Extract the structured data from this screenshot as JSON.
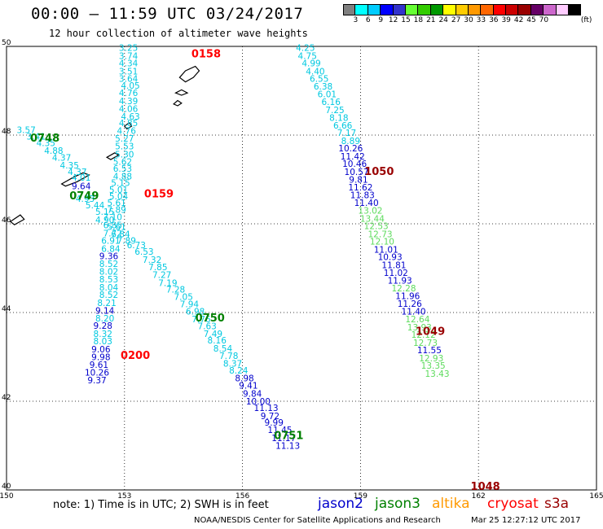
{
  "header": {
    "title": "00:00 — 11:59 UTC 03/24/2017",
    "subtitle": "12 hour collection of altimeter wave heights"
  },
  "legend": {
    "unit": "(ft)",
    "labels": [
      "3",
      "6",
      "9",
      "12",
      "15",
      "18",
      "21",
      "24",
      "27",
      "30",
      "33",
      "36",
      "39",
      "42",
      "45",
      "70"
    ],
    "colors": [
      "#808080",
      "#00ffff",
      "#00ccff",
      "#0000ff",
      "#3333cc",
      "#66ff33",
      "#33cc00",
      "#009900",
      "#ffff00",
      "#ffcc00",
      "#ff9900",
      "#ff6600",
      "#ff0000",
      "#cc0000",
      "#990000",
      "#660066",
      "#cc66cc",
      "#ffccff",
      "#000000"
    ]
  },
  "map": {
    "lat_range": [
      40,
      50
    ],
    "lon_range": [
      150,
      165
    ],
    "lat_ticks": [
      "50",
      "48",
      "46",
      "44",
      "42",
      "40"
    ],
    "lon_ticks": [
      "150",
      "153",
      "156",
      "159",
      "162",
      "165"
    ],
    "colors": {
      "cyan": "#00c8e0",
      "blue": "#0000cc",
      "green": "#5ddb5d",
      "red": "#ff0000",
      "darkred": "#990000",
      "darkgreen": "#008000"
    },
    "time_labels": [
      {
        "text": "0158",
        "color": "red",
        "lon": 154.7,
        "lat": 49.75
      },
      {
        "text": "0748",
        "color": "darkgreen",
        "lon": 150.6,
        "lat": 47.85
      },
      {
        "text": "0749",
        "color": "darkgreen",
        "lon": 151.6,
        "lat": 46.55
      },
      {
        "text": "0159",
        "color": "red",
        "lon": 153.5,
        "lat": 46.6
      },
      {
        "text": "1050",
        "color": "darkred",
        "lon": 159.1,
        "lat": 47.1
      },
      {
        "text": "0750",
        "color": "darkgreen",
        "lon": 154.8,
        "lat": 43.8
      },
      {
        "text": "1049",
        "color": "darkred",
        "lon": 160.4,
        "lat": 43.5
      },
      {
        "text": "0200",
        "color": "red",
        "lon": 152.9,
        "lat": 42.95
      },
      {
        "text": "0751",
        "color": "darkgreen",
        "lon": 156.8,
        "lat": 41.15
      },
      {
        "text": "1048",
        "color": "darkred",
        "lon": 161.8,
        "lat": 40.0
      }
    ],
    "tracks": [
      {
        "name": "track-0158",
        "points": [
          [
            "3.25",
            153.1,
            49.9,
            "cyan"
          ],
          [
            "3.74",
            153.1,
            49.72,
            "cyan"
          ],
          [
            "4.34",
            153.1,
            49.55,
            "cyan"
          ],
          [
            "3.51",
            153.1,
            49.37,
            "cyan"
          ],
          [
            "3.64",
            153.1,
            49.2,
            "cyan"
          ],
          [
            "4.05",
            153.15,
            49.05,
            "cyan"
          ],
          [
            "4.76",
            153.1,
            48.88,
            "cyan"
          ],
          [
            "4.39",
            153.1,
            48.7,
            "cyan"
          ],
          [
            "4.06",
            153.1,
            48.52,
            "cyan"
          ],
          [
            "4.63",
            153.15,
            48.35,
            "cyan"
          ],
          [
            "4.85",
            153.1,
            48.2,
            "cyan"
          ],
          [
            "4.76",
            153.05,
            48.03,
            "cyan"
          ],
          [
            "5.27",
            153.0,
            47.85,
            "cyan"
          ],
          [
            "5.53",
            153.0,
            47.68,
            "cyan"
          ],
          [
            "5.30",
            153.0,
            47.5,
            "cyan"
          ],
          [
            "5.62",
            152.95,
            47.33,
            "cyan"
          ],
          [
            "6.53",
            152.95,
            47.17,
            "cyan"
          ],
          [
            "4.88",
            152.95,
            47.0,
            "cyan"
          ],
          [
            "5.15",
            152.9,
            46.85,
            "cyan"
          ],
          [
            "5.01",
            152.85,
            46.7,
            "cyan"
          ],
          [
            "5.04",
            152.85,
            46.55,
            "cyan"
          ],
          [
            "5.61",
            152.8,
            46.4,
            "cyan"
          ],
          [
            "7.89",
            152.8,
            46.25,
            "cyan"
          ],
          [
            "7.10",
            152.7,
            46.08,
            "cyan"
          ],
          [
            "6.85",
            152.7,
            45.9,
            "cyan"
          ],
          [
            "7.72",
            152.7,
            45.72,
            "cyan"
          ],
          [
            "6.91",
            152.65,
            45.55,
            "cyan"
          ],
          [
            "6.84",
            152.65,
            45.37,
            "cyan"
          ],
          [
            "9.36",
            152.6,
            45.2,
            "blue"
          ],
          [
            "8.52",
            152.6,
            45.03,
            "cyan"
          ],
          [
            "8.02",
            152.6,
            44.85,
            "cyan"
          ],
          [
            "8.53",
            152.6,
            44.68,
            "cyan"
          ],
          [
            "8.04",
            152.6,
            44.5,
            "cyan"
          ],
          [
            "8.52",
            152.6,
            44.33,
            "cyan"
          ],
          [
            "8.21",
            152.55,
            44.15,
            "cyan"
          ],
          [
            "9.14",
            152.5,
            43.97,
            "blue"
          ],
          [
            "8.20",
            152.5,
            43.8,
            "cyan"
          ],
          [
            "9.28",
            152.45,
            43.63,
            "blue"
          ],
          [
            "8.32",
            152.45,
            43.45,
            "cyan"
          ],
          [
            "8.03",
            152.45,
            43.28,
            "cyan"
          ],
          [
            "9.06",
            152.4,
            43.1,
            "blue"
          ],
          [
            "9.98",
            152.4,
            42.93,
            "blue"
          ],
          [
            "9.61",
            152.35,
            42.75,
            "blue"
          ],
          [
            "10.26",
            152.3,
            42.58,
            "blue"
          ],
          [
            "9.37",
            152.3,
            42.4,
            "blue"
          ]
        ]
      },
      {
        "name": "track-0748",
        "points": [
          [
            "3.57",
            150.5,
            48.05,
            "cyan"
          ],
          [
            "3.41",
            150.75,
            47.9,
            "cyan"
          ],
          [
            "4.35",
            151.0,
            47.75,
            "cyan"
          ],
          [
            "4.88",
            151.2,
            47.58,
            "cyan"
          ],
          [
            "4.37",
            151.4,
            47.42,
            "cyan"
          ],
          [
            "4.35",
            151.6,
            47.25,
            "cyan"
          ],
          [
            "4.37",
            151.8,
            47.1,
            "cyan"
          ],
          [
            "4.01",
            151.9,
            46.97,
            "cyan"
          ],
          [
            "9.64",
            151.9,
            46.78,
            "blue"
          ],
          [
            "4.93",
            152.0,
            46.5,
            "cyan"
          ],
          [
            "5.44",
            152.25,
            46.35,
            "cyan"
          ],
          [
            "5.15",
            152.5,
            46.2,
            "cyan"
          ],
          [
            "4.90",
            152.5,
            46.02,
            "cyan"
          ],
          [
            "5.61",
            152.8,
            45.86,
            "cyan"
          ],
          [
            "6.84",
            152.9,
            45.7,
            "cyan"
          ],
          [
            "7.89",
            153.05,
            45.55,
            "cyan"
          ],
          [
            "6.73",
            153.3,
            45.45,
            "cyan"
          ],
          [
            "6.53",
            153.5,
            45.3,
            "cyan"
          ],
          [
            "7.32",
            153.7,
            45.12,
            "cyan"
          ],
          [
            "7.85",
            153.85,
            44.95,
            "cyan"
          ],
          [
            "7.27",
            153.95,
            44.78,
            "cyan"
          ],
          [
            "7.19",
            154.1,
            44.6,
            "cyan"
          ],
          [
            "7.28",
            154.3,
            44.45,
            "cyan"
          ],
          [
            "7.05",
            154.5,
            44.28,
            "cyan"
          ],
          [
            "7.94",
            154.65,
            44.12,
            "cyan"
          ],
          [
            "6.98",
            154.8,
            43.95,
            "cyan"
          ],
          [
            "7.76",
            154.95,
            43.78,
            "cyan"
          ],
          [
            "7.63",
            155.1,
            43.62,
            "cyan"
          ],
          [
            "7.49",
            155.25,
            43.45,
            "cyan"
          ],
          [
            "8.16",
            155.35,
            43.3,
            "cyan"
          ],
          [
            "8.54",
            155.5,
            43.12,
            "cyan"
          ],
          [
            "7.78",
            155.65,
            42.95,
            "cyan"
          ],
          [
            "8.37",
            155.75,
            42.78,
            "cyan"
          ],
          [
            "8.24",
            155.9,
            42.62,
            "cyan"
          ],
          [
            "8.98",
            156.05,
            42.45,
            "blue"
          ],
          [
            "9.41",
            156.15,
            42.28,
            "blue"
          ],
          [
            "9.84",
            156.25,
            42.1,
            "blue"
          ],
          [
            "10.00",
            156.4,
            41.93,
            "blue"
          ],
          [
            "11.13",
            156.6,
            41.78,
            "blue"
          ],
          [
            "9.72",
            156.7,
            41.6,
            "blue"
          ],
          [
            "9.99",
            156.8,
            41.45,
            "blue"
          ],
          [
            "11.45",
            156.95,
            41.28,
            "blue"
          ],
          [
            "11.17",
            157.05,
            41.1,
            "blue"
          ],
          [
            "11.13",
            157.15,
            40.93,
            "blue"
          ]
        ]
      },
      {
        "name": "track-1050",
        "points": [
          [
            "4.25",
            157.6,
            49.9,
            "cyan"
          ],
          [
            "4.75",
            157.65,
            49.72,
            "cyan"
          ],
          [
            "4.99",
            157.75,
            49.55,
            "cyan"
          ],
          [
            "4.40",
            157.85,
            49.37,
            "cyan"
          ],
          [
            "6.55",
            157.95,
            49.2,
            "cyan"
          ],
          [
            "6.38",
            158.05,
            49.03,
            "cyan"
          ],
          [
            "6.01",
            158.15,
            48.85,
            "cyan"
          ],
          [
            "6.16",
            158.25,
            48.68,
            "cyan"
          ],
          [
            "7.25",
            158.35,
            48.5,
            "cyan"
          ],
          [
            "8.18",
            158.45,
            48.32,
            "cyan"
          ],
          [
            "6.66",
            158.55,
            48.15,
            "cyan"
          ],
          [
            "7.17",
            158.65,
            47.98,
            "cyan"
          ],
          [
            "8.89",
            158.75,
            47.8,
            "cyan"
          ],
          [
            "10.26",
            158.75,
            47.63,
            "blue"
          ],
          [
            "11.42",
            158.8,
            47.45,
            "blue"
          ],
          [
            "10.46",
            158.85,
            47.28,
            "blue"
          ],
          [
            "10.57",
            158.9,
            47.1,
            "blue"
          ],
          [
            "9.81",
            158.95,
            46.93,
            "blue"
          ],
          [
            "11.62",
            159.0,
            46.75,
            "blue"
          ],
          [
            "11.83",
            159.05,
            46.58,
            "blue"
          ],
          [
            "11.40",
            159.15,
            46.4,
            "blue"
          ],
          [
            "13.02",
            159.25,
            46.23,
            "green"
          ],
          [
            "13.44",
            159.3,
            46.05,
            "green"
          ],
          [
            "12.53",
            159.4,
            45.88,
            "green"
          ],
          [
            "12.73",
            159.5,
            45.7,
            "green"
          ],
          [
            "12.10",
            159.55,
            45.53,
            "green"
          ],
          [
            "11.01",
            159.65,
            45.35,
            "blue"
          ],
          [
            "10.93",
            159.75,
            45.18,
            "blue"
          ],
          [
            "11.81",
            159.85,
            45.0,
            "blue"
          ],
          [
            "11.02",
            159.9,
            44.83,
            "blue"
          ],
          [
            "11.93",
            160.0,
            44.65,
            "blue"
          ],
          [
            "12.28",
            160.1,
            44.48,
            "green"
          ],
          [
            "11.96",
            160.2,
            44.3,
            "blue"
          ],
          [
            "11.26",
            160.25,
            44.13,
            "blue"
          ],
          [
            "11.40",
            160.35,
            43.95,
            "blue"
          ],
          [
            "12.64",
            160.45,
            43.78,
            "green"
          ],
          [
            "13.93",
            160.5,
            43.6,
            "green"
          ],
          [
            "12.12",
            160.6,
            43.43,
            "green"
          ],
          [
            "12.73",
            160.65,
            43.25,
            "green"
          ],
          [
            "11.55",
            160.75,
            43.08,
            "blue"
          ],
          [
            "12.93",
            160.8,
            42.9,
            "green"
          ],
          [
            "13.35",
            160.85,
            42.73,
            "green"
          ],
          [
            "13.43",
            160.95,
            42.55,
            "green"
          ]
        ]
      }
    ],
    "land": [
      [
        [
          154.4,
          49.3
        ],
        [
          154.55,
          49.45
        ],
        [
          154.8,
          49.55
        ],
        [
          154.9,
          49.45
        ],
        [
          154.75,
          49.3
        ],
        [
          154.55,
          49.2
        ]
      ],
      [
        [
          154.3,
          48.95
        ],
        [
          154.45,
          49.02
        ],
        [
          154.6,
          48.95
        ],
        [
          154.45,
          48.9
        ]
      ],
      [
        [
          154.25,
          48.7
        ],
        [
          154.35,
          48.78
        ],
        [
          154.45,
          48.72
        ],
        [
          154.35,
          48.66
        ]
      ],
      [
        [
          151.4,
          46.9
        ],
        [
          151.7,
          47.05
        ],
        [
          151.95,
          47.15
        ],
        [
          152.1,
          47.1
        ],
        [
          151.8,
          46.95
        ],
        [
          151.5,
          46.85
        ]
      ],
      [
        [
          150.1,
          46.05
        ],
        [
          150.35,
          46.2
        ],
        [
          150.45,
          46.1
        ],
        [
          150.2,
          45.98
        ]
      ],
      [
        [
          152.55,
          47.5
        ],
        [
          152.75,
          47.6
        ],
        [
          152.85,
          47.55
        ],
        [
          152.65,
          47.45
        ]
      ],
      [
        [
          153.0,
          48.2
        ],
        [
          153.12,
          48.28
        ],
        [
          153.18,
          48.2
        ],
        [
          153.06,
          48.14
        ]
      ]
    ]
  },
  "footer": {
    "note": "note: 1) Time is in UTC; 2) SWH is in feet",
    "satellites": [
      {
        "name": "jason2",
        "color": "#0000cc"
      },
      {
        "name": "jason3",
        "color": "#008000"
      },
      {
        "name": "altika",
        "color": "#ff9900"
      },
      {
        "name": "cryosat",
        "color": "#ff0000"
      },
      {
        "name": "s3a",
        "color": "#990000"
      }
    ],
    "credit": "NOAA/NESDIS Center for Satellite Applications and Research",
    "timestamp": "Mar 25 12:27:12 UTC 2017"
  }
}
